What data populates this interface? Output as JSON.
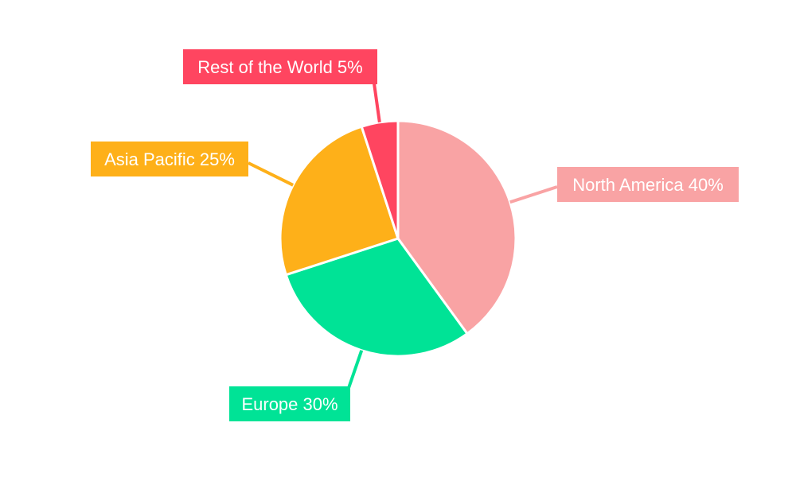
{
  "chart_data": {
    "type": "pie",
    "start_angle": "top, clockwise",
    "slices": [
      {
        "label": "North America",
        "value": 40,
        "text": "North America 40%",
        "color": "#F9A3A4"
      },
      {
        "label": "Europe",
        "value": 30,
        "text": "Europe 30%",
        "color": "#00E396"
      },
      {
        "label": "Asia Pacific",
        "value": 25,
        "text": "Asia Pacific 25%",
        "color": "#FEB019"
      },
      {
        "label": "Rest of the World",
        "value": 5,
        "text": "Rest of the World 5%",
        "color": "#FF4560"
      }
    ]
  }
}
